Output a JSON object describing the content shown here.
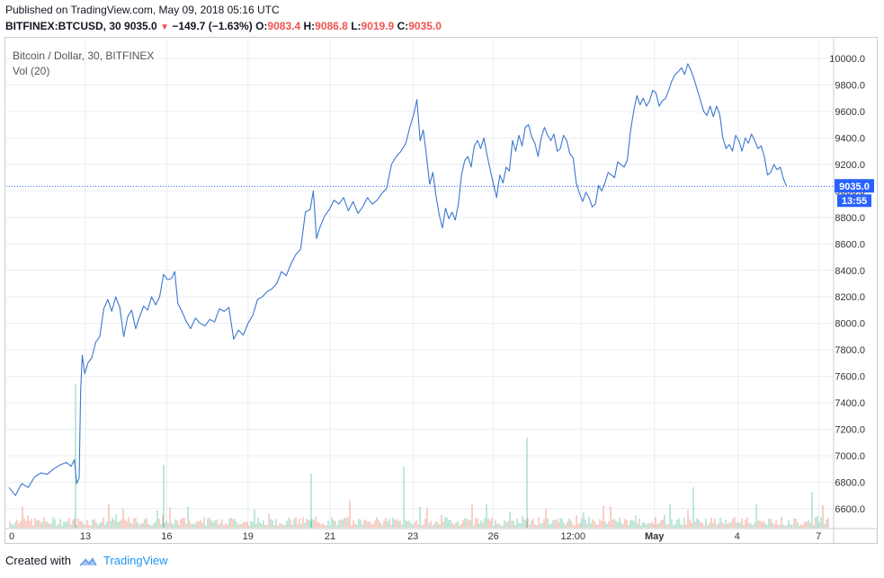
{
  "header": {
    "published": "Published on TradingView.com, May 09, 2018 05:16 UTC",
    "symbol": "BITFINEX:BTCUSD, 30",
    "last": "9035.0",
    "change": "−149.7 (−1.63%)",
    "o_label": "O:",
    "o_value": "9083.4",
    "h_label": "H:",
    "h_value": "9086.8",
    "l_label": "L:",
    "l_value": "9019.9",
    "c_label": "C:",
    "c_value": "9035.0"
  },
  "legend": {
    "series": "Bitcoin / Dollar, 30, BITFINEX",
    "volume": "Vol (20)"
  },
  "footer": {
    "created": "Created with",
    "brand": "TradingView"
  },
  "colors": {
    "line": "#3b77d0",
    "up_volume": "#7fd1b5",
    "down_volume": "#f2a08f",
    "price_label_bg": "#2962ff",
    "grid": "#e8ecf1"
  },
  "chart_data": {
    "type": "line",
    "title": "Bitcoin / Dollar, 30, BITFINEX",
    "ylim": [
      6450,
      10150
    ],
    "y_ticks": [
      6600,
      6800,
      7000,
      7200,
      7400,
      7600,
      7800,
      8000,
      8200,
      8400,
      8600,
      8800,
      9000,
      9200,
      9400,
      9600,
      9800,
      10000
    ],
    "y_tick_labels": [
      "6600.0",
      "6800.0",
      "7000.0",
      "7200.0",
      "7400.0",
      "7600.0",
      "7800.0",
      "8000.0",
      "8200.0",
      "8400.0",
      "8600.0",
      "8800.0",
      "9000.0",
      "9200.0",
      "9400.0",
      "9600.0",
      "9800.0",
      "10000.0"
    ],
    "x_range": [
      0,
      100
    ],
    "x_ticks": [
      {
        "x": 0,
        "label": "0"
      },
      {
        "x": 9.6,
        "label": "13"
      },
      {
        "x": 19.8,
        "label": "16"
      },
      {
        "x": 30.0,
        "label": "19"
      },
      {
        "x": 40.3,
        "label": "21"
      },
      {
        "x": 50.7,
        "label": "23"
      },
      {
        "x": 60.8,
        "label": "26"
      },
      {
        "x": 70.8,
        "label": "12:00"
      },
      {
        "x": 71.8,
        "label": ""
      },
      {
        "x": 81.0,
        "label": "May"
      },
      {
        "x": 91.4,
        "label": "4"
      },
      {
        "x": 91.5,
        "label": ""
      },
      {
        "x": 101.6,
        "label": "7"
      }
    ],
    "x_grid": [
      9.6,
      19.8,
      30.0,
      40.3,
      50.7,
      60.8,
      71.8,
      81.0,
      91.5,
      101.6
    ],
    "x_labels_pixel_order": [
      "0",
      "13",
      "16",
      "19",
      "21",
      "23",
      "26",
      "12:00",
      "May",
      "4",
      "7"
    ],
    "series": [
      {
        "name": "BTCUSD",
        "points": [
          [
            0,
            6760
          ],
          [
            0.8,
            6700
          ],
          [
            1.6,
            6790
          ],
          [
            2.4,
            6760
          ],
          [
            3.2,
            6840
          ],
          [
            4.0,
            6870
          ],
          [
            4.8,
            6860
          ],
          [
            5.6,
            6900
          ],
          [
            6.4,
            6930
          ],
          [
            7.2,
            6950
          ],
          [
            7.8,
            6920
          ],
          [
            8.2,
            6970
          ],
          [
            8.5,
            6790
          ],
          [
            8.8,
            6830
          ],
          [
            9.0,
            7500
          ],
          [
            9.2,
            7760
          ],
          [
            9.5,
            7620
          ],
          [
            9.9,
            7700
          ],
          [
            10.4,
            7740
          ],
          [
            10.9,
            7860
          ],
          [
            11.4,
            7900
          ],
          [
            11.9,
            8110
          ],
          [
            12.4,
            8180
          ],
          [
            12.9,
            8090
          ],
          [
            13.4,
            8200
          ],
          [
            13.9,
            8120
          ],
          [
            14.4,
            7900
          ],
          [
            14.9,
            8050
          ],
          [
            15.4,
            8100
          ],
          [
            15.9,
            7960
          ],
          [
            16.4,
            8050
          ],
          [
            16.9,
            8130
          ],
          [
            17.4,
            8100
          ],
          [
            17.9,
            8200
          ],
          [
            18.4,
            8140
          ],
          [
            18.9,
            8200
          ],
          [
            19.4,
            8370
          ],
          [
            19.9,
            8330
          ],
          [
            20.4,
            8340
          ],
          [
            20.8,
            8390
          ],
          [
            21.2,
            8150
          ],
          [
            21.7,
            8090
          ],
          [
            22.2,
            8020
          ],
          [
            22.8,
            7960
          ],
          [
            23.4,
            8040
          ],
          [
            24.0,
            8000
          ],
          [
            24.6,
            7980
          ],
          [
            25.2,
            8030
          ],
          [
            25.8,
            8010
          ],
          [
            26.4,
            8110
          ],
          [
            27.0,
            8090
          ],
          [
            27.6,
            8120
          ],
          [
            28.2,
            7880
          ],
          [
            28.8,
            7950
          ],
          [
            29.4,
            7910
          ],
          [
            30.0,
            8000
          ],
          [
            30.6,
            8060
          ],
          [
            31.2,
            8180
          ],
          [
            31.8,
            8200
          ],
          [
            32.4,
            8240
          ],
          [
            33.0,
            8260
          ],
          [
            33.6,
            8300
          ],
          [
            34.2,
            8390
          ],
          [
            34.8,
            8360
          ],
          [
            35.4,
            8450
          ],
          [
            36.0,
            8520
          ],
          [
            36.6,
            8560
          ],
          [
            37.2,
            8840
          ],
          [
            37.8,
            8860
          ],
          [
            38.2,
            9000
          ],
          [
            38.6,
            8640
          ],
          [
            39.0,
            8720
          ],
          [
            39.6,
            8810
          ],
          [
            40.2,
            8860
          ],
          [
            40.8,
            8930
          ],
          [
            41.4,
            8900
          ],
          [
            42.0,
            8950
          ],
          [
            42.6,
            8850
          ],
          [
            43.2,
            8920
          ],
          [
            43.8,
            8830
          ],
          [
            44.4,
            8880
          ],
          [
            45.0,
            8950
          ],
          [
            45.6,
            8900
          ],
          [
            46.2,
            8930
          ],
          [
            46.8,
            8980
          ],
          [
            47.4,
            9020
          ],
          [
            48.0,
            9200
          ],
          [
            48.6,
            9260
          ],
          [
            49.2,
            9300
          ],
          [
            49.8,
            9360
          ],
          [
            50.3,
            9480
          ],
          [
            50.8,
            9580
          ],
          [
            51.2,
            9690
          ],
          [
            51.6,
            9380
          ],
          [
            52.0,
            9460
          ],
          [
            52.4,
            9260
          ],
          [
            52.8,
            9050
          ],
          [
            53.2,
            9140
          ],
          [
            53.6,
            8960
          ],
          [
            54.0,
            8820
          ],
          [
            54.4,
            8720
          ],
          [
            54.8,
            8870
          ],
          [
            55.2,
            8790
          ],
          [
            55.6,
            8840
          ],
          [
            56.0,
            8780
          ],
          [
            56.4,
            8900
          ],
          [
            56.8,
            9120
          ],
          [
            57.2,
            9230
          ],
          [
            57.6,
            9260
          ],
          [
            58.0,
            9180
          ],
          [
            58.4,
            9340
          ],
          [
            58.8,
            9380
          ],
          [
            59.2,
            9320
          ],
          [
            59.6,
            9400
          ],
          [
            60.0,
            9270
          ],
          [
            60.4,
            9160
          ],
          [
            60.8,
            9050
          ],
          [
            61.2,
            8950
          ],
          [
            61.6,
            9120
          ],
          [
            62.0,
            9060
          ],
          [
            62.4,
            9180
          ],
          [
            62.8,
            9150
          ],
          [
            63.2,
            9380
          ],
          [
            63.6,
            9300
          ],
          [
            64.0,
            9420
          ],
          [
            64.4,
            9340
          ],
          [
            64.8,
            9480
          ],
          [
            65.2,
            9500
          ],
          [
            65.6,
            9410
          ],
          [
            66.0,
            9360
          ],
          [
            66.4,
            9260
          ],
          [
            66.8,
            9400
          ],
          [
            67.2,
            9480
          ],
          [
            67.6,
            9420
          ],
          [
            68.0,
            9380
          ],
          [
            68.4,
            9430
          ],
          [
            68.8,
            9300
          ],
          [
            69.2,
            9320
          ],
          [
            69.6,
            9420
          ],
          [
            70.0,
            9380
          ],
          [
            70.4,
            9280
          ],
          [
            70.8,
            9250
          ],
          [
            71.2,
            9060
          ],
          [
            71.6,
            8980
          ],
          [
            72.0,
            8920
          ],
          [
            72.4,
            8990
          ],
          [
            72.8,
            8950
          ],
          [
            73.2,
            8880
          ],
          [
            73.6,
            8900
          ],
          [
            74.0,
            9040
          ],
          [
            74.4,
            9000
          ],
          [
            74.8,
            9060
          ],
          [
            75.2,
            9140
          ],
          [
            75.6,
            9120
          ],
          [
            76.0,
            9100
          ],
          [
            76.4,
            9220
          ],
          [
            76.8,
            9200
          ],
          [
            77.2,
            9180
          ],
          [
            77.6,
            9230
          ],
          [
            78.0,
            9450
          ],
          [
            78.4,
            9600
          ],
          [
            78.8,
            9720
          ],
          [
            79.2,
            9650
          ],
          [
            79.6,
            9700
          ],
          [
            80.0,
            9640
          ],
          [
            80.4,
            9680
          ],
          [
            80.8,
            9760
          ],
          [
            81.2,
            9740
          ],
          [
            81.6,
            9640
          ],
          [
            82.0,
            9680
          ],
          [
            82.4,
            9700
          ],
          [
            82.8,
            9760
          ],
          [
            83.2,
            9830
          ],
          [
            83.6,
            9880
          ],
          [
            84.0,
            9900
          ],
          [
            84.4,
            9930
          ],
          [
            84.8,
            9880
          ],
          [
            85.2,
            9960
          ],
          [
            85.6,
            9910
          ],
          [
            86.0,
            9840
          ],
          [
            86.4,
            9760
          ],
          [
            86.8,
            9680
          ],
          [
            87.2,
            9600
          ],
          [
            87.6,
            9570
          ],
          [
            88.0,
            9640
          ],
          [
            88.4,
            9560
          ],
          [
            88.8,
            9640
          ],
          [
            89.2,
            9580
          ],
          [
            89.6,
            9400
          ],
          [
            90.0,
            9320
          ],
          [
            90.4,
            9350
          ],
          [
            90.8,
            9300
          ],
          [
            91.2,
            9420
          ],
          [
            91.6,
            9380
          ],
          [
            92.0,
            9300
          ],
          [
            92.4,
            9400
          ],
          [
            92.8,
            9360
          ],
          [
            93.2,
            9430
          ],
          [
            93.6,
            9380
          ],
          [
            94.0,
            9320
          ],
          [
            94.4,
            9340
          ],
          [
            94.8,
            9260
          ],
          [
            95.2,
            9120
          ],
          [
            95.6,
            9140
          ],
          [
            96.0,
            9200
          ],
          [
            96.4,
            9160
          ],
          [
            96.8,
            9180
          ],
          [
            97.2,
            9090
          ],
          [
            97.6,
            9035
          ]
        ]
      }
    ],
    "last_price": {
      "value": 9035.0,
      "label": "9035.0",
      "countdown": "13:55"
    }
  }
}
